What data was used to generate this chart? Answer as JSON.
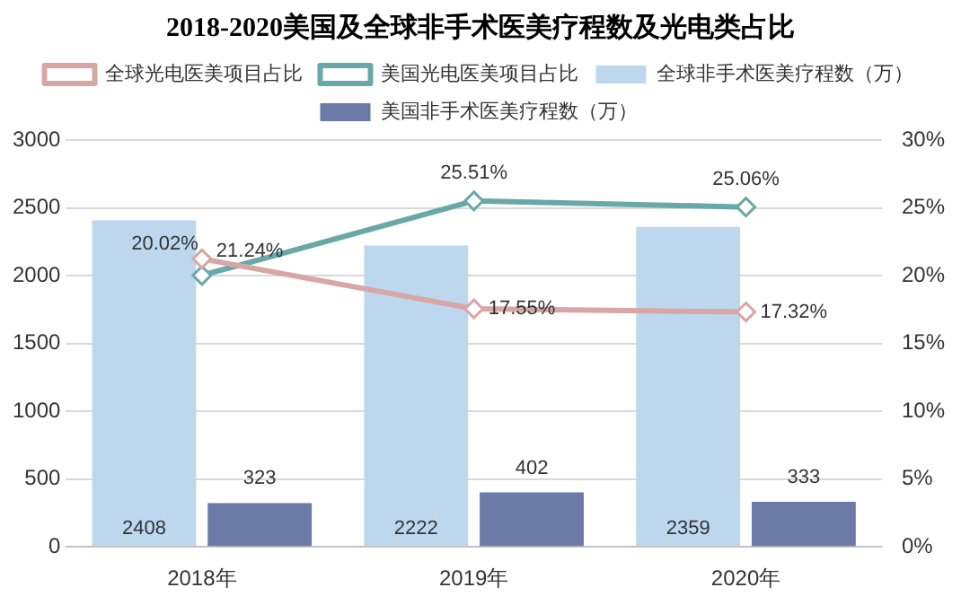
{
  "chart_data": {
    "type": "bar",
    "title": "2018-2020美国及全球非手术医美疗程数及光电类占比",
    "categories": [
      "2018年",
      "2019年",
      "2020年"
    ],
    "series": [
      {
        "name": "全球非手术医美疗程数（万）",
        "color": "#bdd7ee",
        "values": [
          2408,
          2222,
          2359
        ],
        "value_labels": [
          "2408",
          "2222",
          "2359"
        ]
      },
      {
        "name": "美国非手术医美疗程数（万）",
        "color": "#6b7aa6",
        "values": [
          323,
          402,
          333
        ],
        "value_labels": [
          "323",
          "402",
          "333"
        ]
      },
      {
        "name": "全球光电医美项目占比",
        "type": "line",
        "axis": "y2",
        "color": "#d9a6a6",
        "values": [
          21.24,
          17.55,
          17.32
        ],
        "value_labels": [
          "21.24%",
          "17.55%",
          "17.32%"
        ]
      },
      {
        "name": "美国光电医美项目占比",
        "type": "line",
        "axis": "y2",
        "color": "#6aa8a8",
        "values": [
          20.02,
          25.51,
          25.06
        ],
        "value_labels": [
          "20.02%",
          "25.51%",
          "25.06%"
        ]
      }
    ],
    "ylim": [
      0,
      3000
    ],
    "yticks": [
      0,
      500,
      1000,
      1500,
      2000,
      2500,
      3000
    ],
    "y2lim": [
      0,
      30
    ],
    "y2ticks": [
      {
        "value": 0,
        "label": "0%"
      },
      {
        "value": 5,
        "label": "5%"
      },
      {
        "value": 10,
        "label": "10%"
      },
      {
        "value": 15,
        "label": "15%"
      },
      {
        "value": 20,
        "label": "20%"
      },
      {
        "value": 25,
        "label": "25%"
      },
      {
        "value": 30,
        "label": "30%"
      }
    ],
    "grid": "y",
    "legend": "top",
    "marker": "diamond"
  }
}
